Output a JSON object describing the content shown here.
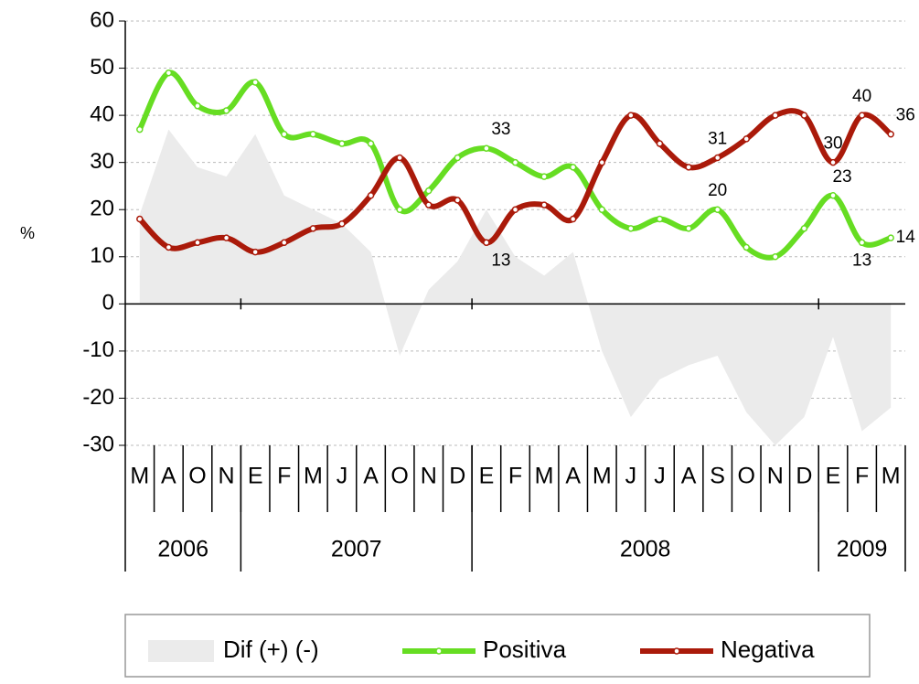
{
  "chart_data": {
    "type": "line",
    "y_label": "%",
    "categories": [
      "M",
      "A",
      "O",
      "N",
      "E",
      "F",
      "M",
      "J",
      "A",
      "O",
      "N",
      "D",
      "E",
      "F",
      "M",
      "A",
      "M",
      "J",
      "J",
      "A",
      "S",
      "O",
      "N",
      "D",
      "E",
      "F",
      "M"
    ],
    "year_groups": [
      {
        "label": "2006",
        "count": 4
      },
      {
        "label": "2007",
        "count": 8
      },
      {
        "label": "2008",
        "count": 12
      },
      {
        "label": "2009",
        "count": 3
      }
    ],
    "series": [
      {
        "name": "Dif (+) (-)",
        "kind": "area",
        "color": "#ebebeb",
        "values": [
          19,
          37,
          29,
          27,
          36,
          23,
          20,
          17,
          11,
          -11,
          3,
          9,
          20,
          10,
          6,
          11,
          -10,
          -24,
          -16,
          -13,
          -11,
          -23,
          -30,
          -24,
          -7,
          -27,
          -22
        ]
      },
      {
        "name": "Positiva",
        "kind": "line",
        "color": "#66dd22",
        "values": [
          37,
          49,
          42,
          41,
          47,
          36,
          36,
          34,
          34,
          20,
          24,
          31,
          33,
          30,
          27,
          29,
          20,
          16,
          18,
          16,
          20,
          12,
          10,
          16,
          23,
          13,
          14
        ],
        "value_labels": [
          null,
          null,
          null,
          null,
          null,
          null,
          null,
          null,
          null,
          null,
          null,
          null,
          "33",
          null,
          null,
          null,
          null,
          null,
          null,
          null,
          "20",
          null,
          null,
          null,
          "23",
          "13",
          "14"
        ]
      },
      {
        "name": "Negativa",
        "kind": "line",
        "color": "#aa1a0a",
        "values": [
          18,
          12,
          13,
          14,
          11,
          13,
          16,
          17,
          23,
          31,
          21,
          22,
          13,
          20,
          21,
          18,
          30,
          40,
          34,
          29,
          31,
          35,
          40,
          40,
          30,
          40,
          36
        ],
        "value_labels": [
          null,
          null,
          null,
          null,
          null,
          null,
          null,
          null,
          null,
          null,
          null,
          null,
          "13",
          null,
          null,
          null,
          null,
          null,
          null,
          null,
          "31",
          null,
          null,
          null,
          "30",
          "40",
          "36"
        ]
      }
    ],
    "ylim": [
      -30,
      60
    ],
    "yticks": [
      -30,
      -20,
      -10,
      0,
      10,
      20,
      30,
      40,
      50,
      60
    ],
    "grid": true,
    "legend": "bottom"
  }
}
